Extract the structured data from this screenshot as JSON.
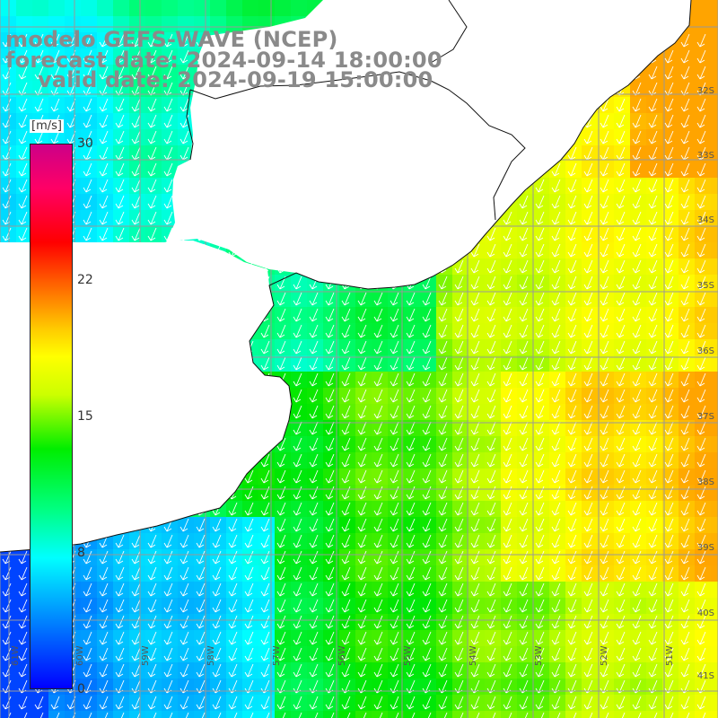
{
  "header": {
    "model": "modelo GEFS-WAVE (NCEP)",
    "forecast": "forecast date: 2024-09-14 18:00:00",
    "valid": "valid date: 2024-09-19 15:00:00"
  },
  "colorbar": {
    "unit": "[m/s]",
    "ticks": [
      "30",
      "22",
      "15",
      "8",
      "0"
    ],
    "colors": [
      "#0000ff",
      "#00ffff",
      "#00ee00",
      "#ffff00",
      "#ff0000",
      "#cc0088"
    ]
  },
  "map": {
    "lat_labels": [
      "32S",
      "33S",
      "34S",
      "35S",
      "36S",
      "37S",
      "38S",
      "39S",
      "40S",
      "41S"
    ],
    "lon_labels": [
      "61W",
      "60W",
      "59W",
      "58W",
      "57W",
      "56W",
      "55W",
      "54W",
      "53W",
      "52W",
      "51W"
    ],
    "land_color": "#ffffff",
    "grid_color": "#999999",
    "arrow_color": "#ffffff"
  }
}
